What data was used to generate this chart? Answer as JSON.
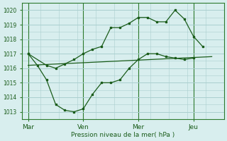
{
  "bg_color": "#d8eeee",
  "grid_color": "#aacfcf",
  "line_color": "#1a5c1a",
  "marker_color": "#1a5c1a",
  "ylabel_ticks": [
    1013,
    1014,
    1015,
    1016,
    1017,
    1018,
    1019,
    1020
  ],
  "ylim": [
    1012.5,
    1020.5
  ],
  "xlabel": "Pression niveau de la mer( hPa )",
  "xtick_labels": [
    "Mar",
    "Ven",
    "Mer",
    "Jeu"
  ],
  "xtick_positions": [
    0,
    36,
    72,
    108
  ],
  "xlim": [
    -4,
    128
  ],
  "series_upper_x": [
    0,
    12,
    18,
    24,
    30,
    36,
    42,
    48,
    54,
    60,
    66,
    72,
    78,
    84,
    90,
    96,
    102,
    108,
    114
  ],
  "series_upper_y": [
    1017.0,
    1016.2,
    1016.0,
    1016.3,
    1016.6,
    1017.0,
    1017.3,
    1017.5,
    1018.8,
    1018.8,
    1019.1,
    1019.5,
    1019.5,
    1019.2,
    1019.2,
    1020.0,
    1019.4,
    1018.2,
    1017.5
  ],
  "series_lower_x": [
    0,
    6,
    12,
    18,
    24,
    30,
    36,
    42,
    48,
    54,
    60,
    66,
    72,
    78,
    84,
    90,
    96,
    102,
    108
  ],
  "series_lower_y": [
    1017.0,
    1016.2,
    1015.2,
    1013.5,
    1013.1,
    1013.0,
    1013.2,
    1014.2,
    1015.0,
    1015.0,
    1015.2,
    1016.0,
    1016.6,
    1017.0,
    1017.0,
    1016.8,
    1016.7,
    1016.6,
    1016.7
  ],
  "series_trend_x": [
    0,
    120
  ],
  "series_trend_y": [
    1016.2,
    1016.8
  ],
  "vline_positions": [
    0,
    36,
    72,
    108
  ]
}
